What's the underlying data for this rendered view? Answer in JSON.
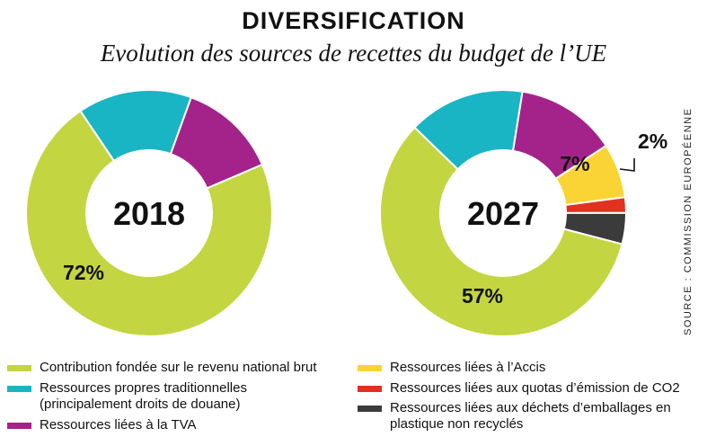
{
  "header": {
    "title": "DIVERSIFICATION",
    "subtitle": "Evolution des sources de recettes du budget de l’UE",
    "source": "SOURCE : COMMISSION EUROPÉENNE"
  },
  "colors": {
    "gni": "#c4d542",
    "tor": "#1ab5c4",
    "vat": "#a4238a",
    "ccctb": "#fad434",
    "ets": "#e0321e",
    "plastic": "#3b3b3b"
  },
  "legend": {
    "items": [
      {
        "key": "gni",
        "label": "Contribution fondée sur le revenu national brut"
      },
      {
        "key": "tor",
        "label": "Ressources propres traditionnelles (principalement droits de douane)"
      },
      {
        "key": "vat",
        "label": "Ressources liées à la TVA"
      },
      {
        "key": "ccctb",
        "label": "Ressources liées à l’Accis"
      },
      {
        "key": "ets",
        "label": "Ressources liées aux quotas d’émission de CO2"
      },
      {
        "key": "plastic",
        "label": "Ressources liées aux déchets d’emballages en plastique non recyclés"
      }
    ]
  },
  "chart_data": [
    {
      "type": "pie",
      "center_label": "2018",
      "slices": [
        {
          "key": "gni",
          "value": 72,
          "label": "72%"
        },
        {
          "key": "tor",
          "value": 15,
          "label": ""
        },
        {
          "key": "vat",
          "value": 13,
          "label": ""
        }
      ]
    },
    {
      "type": "pie",
      "center_label": "2027",
      "slices": [
        {
          "key": "gni",
          "value": 57,
          "label": "57%"
        },
        {
          "key": "tor",
          "value": 15,
          "label": ""
        },
        {
          "key": "vat",
          "value": 13,
          "label": ""
        },
        {
          "key": "ccctb",
          "value": 7,
          "label": "7%"
        },
        {
          "key": "ets",
          "value": 2,
          "label": "2%"
        },
        {
          "key": "plastic",
          "value": 4,
          "label": ""
        }
      ]
    }
  ]
}
